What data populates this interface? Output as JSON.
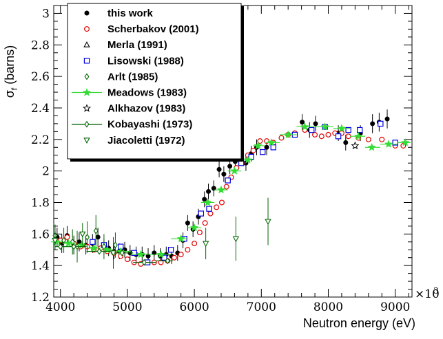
{
  "chart_data": {
    "type": "scatter",
    "xlabel": "Neutron energy (eV)",
    "ylabel": "σ",
    "ylabel_sub": "f",
    "ylabel_suffix": " (barns)",
    "x_exponent_label": "×10",
    "x_exponent_power": "3",
    "xlim": [
      3900,
      9250
    ],
    "ylim": [
      1.2,
      3.05
    ],
    "x_ticks": [
      4000,
      5000,
      6000,
      7000,
      8000,
      9000
    ],
    "x_tick_labels": [
      "4000",
      "5000",
      "6000",
      "7000",
      "8000",
      "9000"
    ],
    "y_ticks": [
      1.2,
      1.4,
      1.6,
      1.8,
      2.0,
      2.2,
      2.4,
      2.6,
      2.8,
      3.0
    ],
    "y_tick_labels": [
      "1.2",
      "1.4",
      "1.6",
      "1.8",
      "2",
      "2.2",
      "2.4",
      "2.6",
      "2.8",
      "3"
    ],
    "legend_position": "top-left",
    "series": [
      {
        "name": "this work",
        "marker": "filled-circle",
        "color": "#000000",
        "points": [
          [
            3950,
            1.58,
            0.06
          ],
          [
            4020,
            1.54,
            0.06
          ],
          [
            4100,
            1.59,
            0.06
          ],
          [
            4200,
            1.53,
            0.06
          ],
          [
            4280,
            1.55,
            0.06
          ],
          [
            4380,
            1.53,
            0.06
          ],
          [
            4480,
            1.54,
            0.06
          ],
          [
            4560,
            1.58,
            0.06
          ],
          [
            4650,
            1.52,
            0.05
          ],
          [
            4720,
            1.51,
            0.05
          ],
          [
            4800,
            1.49,
            0.05
          ],
          [
            4880,
            1.49,
            0.05
          ],
          [
            4960,
            1.5,
            0.05
          ],
          [
            5040,
            1.48,
            0.05
          ],
          [
            5130,
            1.47,
            0.05
          ],
          [
            5220,
            1.47,
            0.05
          ],
          [
            5310,
            1.46,
            0.05
          ],
          [
            5400,
            1.48,
            0.05
          ],
          [
            5490,
            1.46,
            0.05
          ],
          [
            5580,
            1.47,
            0.05
          ],
          [
            5660,
            1.46,
            0.05
          ],
          [
            5750,
            1.48,
            0.05
          ],
          [
            5830,
            1.56,
            0.05
          ],
          [
            5900,
            1.67,
            0.05
          ],
          [
            5980,
            1.63,
            0.05
          ],
          [
            6060,
            1.71,
            0.05
          ],
          [
            6150,
            1.82,
            0.05
          ],
          [
            6210,
            1.87,
            0.05
          ],
          [
            6290,
            1.89,
            0.05
          ],
          [
            6370,
            2.01,
            0.05
          ],
          [
            6440,
            1.98,
            0.05
          ],
          [
            6530,
            2.03,
            0.05
          ],
          [
            6610,
            2.06,
            0.05
          ],
          [
            6690,
            2.1,
            0.05
          ],
          [
            6770,
            2.05,
            0.05
          ],
          [
            6850,
            2.11,
            0.05
          ],
          [
            6930,
            2.15,
            0.05
          ],
          [
            7080,
            2.15,
            0.05
          ],
          [
            7610,
            2.31,
            0.05
          ],
          [
            7720,
            2.26,
            0.05
          ],
          [
            7810,
            2.3,
            0.05
          ],
          [
            8150,
            2.24,
            0.05
          ],
          [
            8260,
            2.18,
            0.05
          ],
          [
            8480,
            2.24,
            0.05
          ],
          [
            8660,
            2.3,
            0.06
          ],
          [
            8760,
            2.31,
            0.06
          ],
          [
            8880,
            2.33,
            0.06
          ]
        ]
      },
      {
        "name": "Scherbakov (2001)",
        "marker": "open-circle",
        "color": "#e00000",
        "points": [
          [
            4000,
            1.56
          ],
          [
            4100,
            1.58
          ],
          [
            4200,
            1.54
          ],
          [
            4300,
            1.52
          ],
          [
            4400,
            1.52
          ],
          [
            4500,
            1.5
          ],
          [
            4600,
            1.51
          ],
          [
            4700,
            1.49
          ],
          [
            4800,
            1.48
          ],
          [
            4900,
            1.46
          ],
          [
            5000,
            1.44
          ],
          [
            5100,
            1.42
          ],
          [
            5200,
            1.41
          ],
          [
            5300,
            1.42
          ],
          [
            5400,
            1.42
          ],
          [
            5500,
            1.42
          ],
          [
            5600,
            1.43
          ],
          [
            5700,
            1.45
          ],
          [
            5800,
            1.47
          ],
          [
            5900,
            1.5
          ],
          [
            6000,
            1.54
          ],
          [
            6080,
            1.61
          ],
          [
            6160,
            1.67
          ],
          [
            6240,
            1.73
          ],
          [
            6330,
            1.77
          ],
          [
            6410,
            1.8
          ],
          [
            6480,
            1.9
          ],
          [
            6550,
            1.96
          ],
          [
            6630,
            2.02
          ],
          [
            6710,
            2.05
          ],
          [
            6800,
            2.1
          ],
          [
            6880,
            2.13
          ],
          [
            6980,
            2.19
          ],
          [
            7080,
            2.19
          ],
          [
            7180,
            2.18
          ],
          [
            7300,
            2.21
          ],
          [
            7400,
            2.23
          ],
          [
            7500,
            2.24
          ],
          [
            7650,
            2.26
          ],
          [
            7800,
            2.23
          ],
          [
            7900,
            2.22
          ],
          [
            8000,
            2.23
          ],
          [
            8100,
            2.24
          ],
          [
            8200,
            2.24
          ],
          [
            8300,
            2.22
          ],
          [
            8450,
            2.21
          ],
          [
            8600,
            2.2
          ],
          [
            8800,
            2.2
          ],
          [
            9000,
            2.16
          ],
          [
            9120,
            2.16
          ]
        ]
      },
      {
        "name": "Merla (1991)",
        "marker": "open-triangle-up",
        "color": "#000000",
        "points": []
      },
      {
        "name": "Lisowski (1988)",
        "marker": "open-square",
        "color": "#0000e0",
        "points": [
          [
            4480,
            1.55
          ],
          [
            4650,
            1.53
          ],
          [
            4900,
            1.52
          ],
          [
            5100,
            1.48
          ],
          [
            5300,
            1.42
          ],
          [
            5550,
            1.45
          ],
          [
            5650,
            1.5
          ],
          [
            5850,
            1.57
          ],
          [
            6100,
            1.73
          ],
          [
            6220,
            1.76
          ],
          [
            6500,
            1.94
          ],
          [
            6700,
            2.05
          ],
          [
            6850,
            2.09
          ],
          [
            7020,
            2.12
          ],
          [
            7180,
            2.15
          ],
          [
            7500,
            2.23
          ],
          [
            7750,
            2.26
          ],
          [
            7950,
            2.28
          ],
          [
            8150,
            2.22
          ],
          [
            8300,
            2.26
          ],
          [
            8470,
            2.26
          ],
          [
            8780,
            2.3
          ],
          [
            9000,
            2.18
          ]
        ]
      },
      {
        "name": "Arlt (1985)",
        "marker": "open-diamond",
        "color": "#006400",
        "points": [
          [
            3920,
            1.59,
            0.07
          ],
          [
            4050,
            1.56,
            0.08
          ],
          [
            4180,
            1.55,
            0.08
          ],
          [
            4250,
            1.52,
            0.1
          ],
          [
            4400,
            1.58,
            0.1
          ],
          [
            4530,
            1.62,
            0.1
          ],
          [
            4650,
            1.52,
            0.08
          ],
          [
            4820,
            1.53,
            0.08
          ]
        ]
      },
      {
        "name": "Meadows (1983)",
        "marker": "star",
        "color": "#33dd33",
        "line": true,
        "points": [
          [
            3940,
            1.55
          ],
          [
            4120,
            1.54
          ],
          [
            4320,
            1.53
          ],
          [
            4500,
            1.51
          ],
          [
            4700,
            1.5
          ],
          [
            4900,
            1.49
          ],
          [
            5200,
            1.47
          ],
          [
            5500,
            1.47
          ],
          [
            5800,
            1.57
          ],
          [
            6000,
            1.64
          ],
          [
            6200,
            1.8
          ],
          [
            6400,
            1.88
          ],
          [
            6600,
            2.0
          ],
          [
            6800,
            2.07
          ],
          [
            6950,
            2.16
          ],
          [
            7150,
            2.18
          ],
          [
            7400,
            2.23
          ],
          [
            7650,
            2.28
          ],
          [
            7950,
            2.28
          ],
          [
            8200,
            2.27
          ],
          [
            8450,
            2.22
          ],
          [
            8650,
            2.15
          ],
          [
            8900,
            2.17
          ],
          [
            9150,
            2.18
          ]
        ]
      },
      {
        "name": "Alkhazov (1983)",
        "marker": "open-star",
        "color": "#000000",
        "points": [
          [
            8400,
            2.16
          ]
        ]
      },
      {
        "name": "Kobayashi (1973)",
        "marker": "open-diamond",
        "color": "#006400",
        "line": true,
        "points": [
          [
            4000,
            1.52
          ],
          [
            4200,
            1.52
          ],
          [
            4580,
            1.49
          ],
          [
            4920,
            1.48
          ],
          [
            5250,
            1.42
          ],
          [
            5600,
            1.43
          ]
        ]
      },
      {
        "name": "Jiacoletti (1972)",
        "marker": "open-triangle-down",
        "color": "#006400",
        "points": [
          [
            3920,
            1.56,
            0.06
          ],
          [
            4330,
            1.6,
            0.07
          ],
          [
            4790,
            1.48,
            0.1
          ],
          [
            6170,
            1.54,
            0.1
          ],
          [
            6620,
            1.57,
            0.14
          ],
          [
            7100,
            1.68,
            0.15
          ]
        ]
      }
    ]
  }
}
